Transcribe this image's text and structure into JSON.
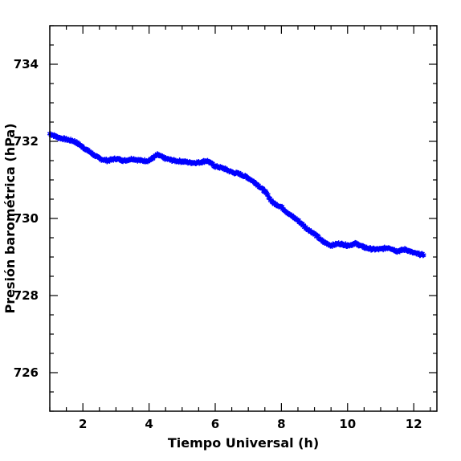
{
  "chart_data": {
    "type": "scatter",
    "title": "",
    "xlabel": "Tiempo Universal (h)",
    "ylabel": "Presión barométrica (hPa)",
    "xlim": [
      1.0,
      12.7
    ],
    "ylim": [
      725.0,
      735.0
    ],
    "x_ticks": [
      2,
      4,
      6,
      8,
      10,
      12
    ],
    "y_ticks": [
      726,
      728,
      730,
      732,
      734
    ],
    "x_minor_step": 0.5,
    "y_minor_step": 0.5,
    "grid": false,
    "marker": "star",
    "marker_color": "#0000ff",
    "series": [
      {
        "x": [
          1.0,
          1.25,
          1.5,
          1.75,
          2.0,
          2.25,
          2.5,
          2.75,
          3.0,
          3.25,
          3.5,
          3.75,
          4.0,
          4.25,
          4.5,
          4.75,
          5.0,
          5.25,
          5.5,
          5.75,
          6.0,
          6.25,
          6.5,
          6.75,
          7.0,
          7.25,
          7.5,
          7.75,
          8.0,
          8.25,
          8.5,
          8.75,
          9.0,
          9.25,
          9.5,
          9.75,
          10.0,
          10.25,
          10.5,
          10.75,
          11.0,
          11.25,
          11.5,
          11.75,
          12.0,
          12.3
        ],
        "y": [
          732.2,
          732.1,
          732.05,
          732.0,
          731.85,
          731.7,
          731.55,
          731.5,
          731.55,
          731.5,
          731.55,
          731.5,
          731.5,
          731.65,
          731.55,
          731.5,
          731.48,
          731.45,
          731.45,
          731.5,
          731.35,
          731.3,
          731.2,
          731.15,
          731.05,
          730.9,
          730.7,
          730.4,
          730.3,
          730.1,
          729.95,
          729.75,
          729.6,
          729.4,
          729.3,
          729.35,
          729.3,
          729.35,
          729.25,
          729.2,
          729.2,
          729.25,
          729.15,
          729.2,
          729.1,
          729.05
        ]
      }
    ]
  }
}
